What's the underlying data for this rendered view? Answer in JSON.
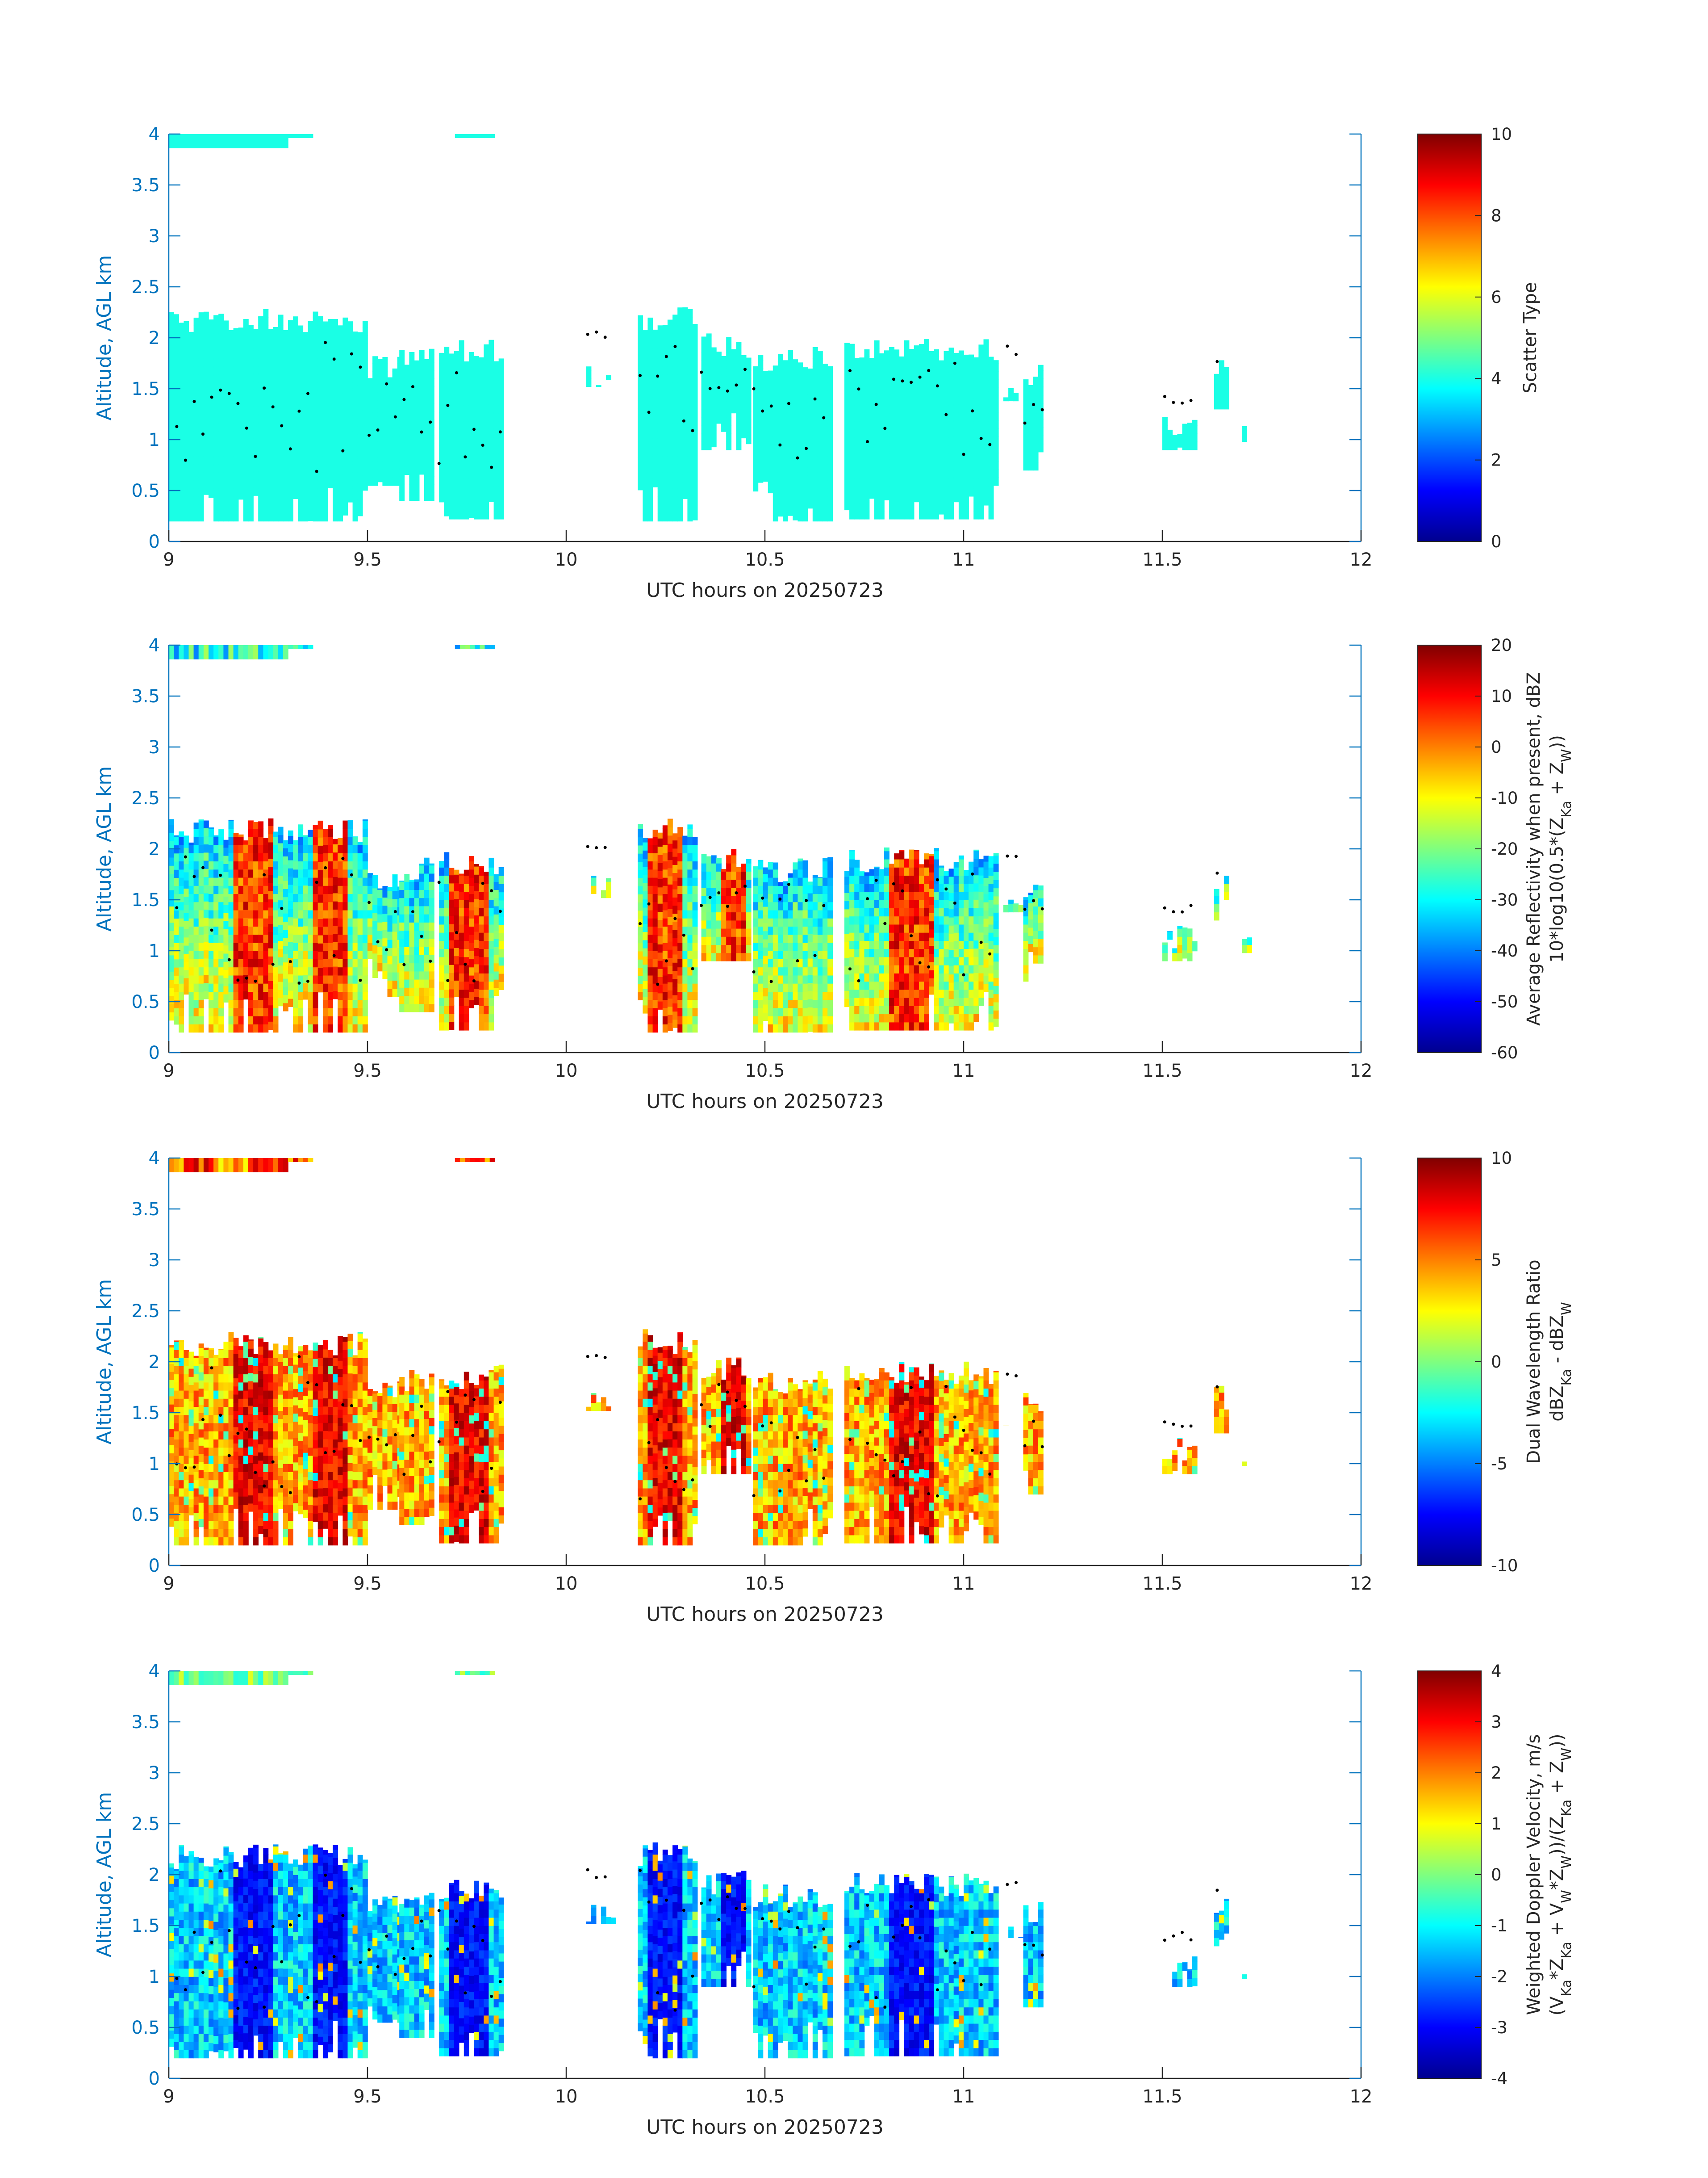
{
  "chart_data": [
    {
      "type": "heatmap",
      "xlabel": "UTC hours on 20250723",
      "ylabel": "Altitude, AGL km",
      "xlim": [
        9,
        12
      ],
      "ylim": [
        0,
        4
      ],
      "xticks": [
        "9",
        "9.5",
        "10",
        "10.5",
        "11",
        "11.5",
        "12"
      ],
      "yticks": [
        "0",
        "0.5",
        "1",
        "1.5",
        "2",
        "2.5",
        "3",
        "3.5",
        "4"
      ],
      "colorbar": {
        "label": "Scatter Type",
        "range": [
          0,
          10
        ],
        "ticks": [
          "0",
          "2",
          "4",
          "6",
          "8",
          "10"
        ]
      },
      "colormap": "jet",
      "cloud_tops_km": [
        [
          9.0,
          2.2
        ],
        [
          9.2,
          2.2
        ],
        [
          9.4,
          2.3
        ],
        [
          9.6,
          1.9
        ],
        [
          9.75,
          2.0
        ],
        [
          10.25,
          2.3
        ],
        [
          10.6,
          1.9
        ],
        [
          10.8,
          2.0
        ],
        [
          11.05,
          1.7
        ],
        [
          11.17,
          1.7
        ],
        [
          11.6,
          1.3
        ]
      ]
    },
    {
      "type": "heatmap",
      "xlabel": "UTC hours on 20250723",
      "ylabel": "Altitude, AGL km",
      "xlim": [
        9,
        12
      ],
      "ylim": [
        0,
        4
      ],
      "xticks": [
        "9",
        "9.5",
        "10",
        "10.5",
        "11",
        "11.5",
        "12"
      ],
      "yticks": [
        "0",
        "0.5",
        "1",
        "1.5",
        "2",
        "2.5",
        "3",
        "3.5",
        "4"
      ],
      "colorbar": {
        "label_line1": "Average Reflectivity when present, dBZ",
        "label_line2": "10*log10(0.5*(Z_Ka + Z_W))",
        "range": [
          -60,
          20
        ],
        "ticks": [
          "-60",
          "-50",
          "-40",
          "-30",
          "-20",
          "-10",
          "0",
          "10",
          "20"
        ]
      },
      "colormap": "jet"
    },
    {
      "type": "heatmap",
      "xlabel": "UTC hours on 20250723",
      "ylabel": "Altitude, AGL km",
      "xlim": [
        9,
        12
      ],
      "ylim": [
        0,
        4
      ],
      "xticks": [
        "9",
        "9.5",
        "10",
        "10.5",
        "11",
        "11.5",
        "12"
      ],
      "yticks": [
        "0",
        "0.5",
        "1",
        "1.5",
        "2",
        "2.5",
        "3",
        "3.5",
        "4"
      ],
      "colorbar": {
        "label_line1": "Dual Wavelength Ratio",
        "label_line2": "dBZ_Ka - dBZ_W",
        "range": [
          -10,
          10
        ],
        "ticks": [
          "-10",
          "-5",
          "0",
          "5",
          "10"
        ]
      },
      "colormap": "jet"
    },
    {
      "type": "heatmap",
      "xlabel": "UTC hours on 20250723",
      "ylabel": "Altitude, AGL km",
      "xlim": [
        9,
        12
      ],
      "ylim": [
        0,
        4
      ],
      "xticks": [
        "9",
        "9.5",
        "10",
        "10.5",
        "11",
        "11.5",
        "12"
      ],
      "yticks": [
        "0",
        "0.5",
        "1",
        "1.5",
        "2",
        "2.5",
        "3",
        "3.5",
        "4"
      ],
      "colorbar": {
        "label_line1": "Weighted Doppler Velocity, m/s",
        "label_line2": "(V_Ka*Z_Ka + V_W*Z_W))/(Z_Ka + Z_W))",
        "range": [
          -4,
          4
        ],
        "ticks": [
          "-4",
          "-3",
          "-2",
          "-1",
          "0",
          "1",
          "2",
          "3",
          "4"
        ]
      },
      "colormap": "jet"
    }
  ]
}
